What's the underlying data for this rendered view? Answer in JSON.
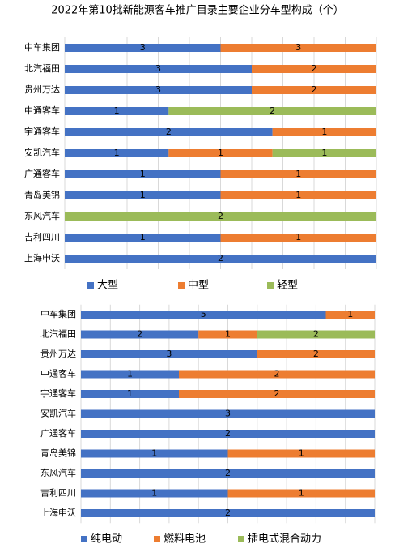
{
  "chart_data": [
    {
      "type": "bar",
      "title": "2022年第10批新能源客车推广目录主要企业分车型构成（个）",
      "stacking": "percent",
      "grid": true,
      "categories": [
        "中车集团",
        "北汽福田",
        "贵州万达",
        "中通客车",
        "宇通客车",
        "安凯汽车",
        "广通客车",
        "青岛美锦",
        "东风汽车",
        "吉利四川",
        "上海申沃"
      ],
      "series": [
        {
          "name": "大型",
          "color": "#4472c4",
          "values": [
            3,
            3,
            3,
            1,
            2,
            1,
            1,
            1,
            null,
            1,
            2
          ]
        },
        {
          "name": "中型",
          "color": "#ed7d31",
          "values": [
            3,
            2,
            2,
            null,
            1,
            1,
            1,
            1,
            null,
            1,
            null
          ]
        },
        {
          "name": "轻型",
          "color": "#9bbb59",
          "values": [
            null,
            null,
            null,
            2,
            null,
            1,
            null,
            null,
            2,
            null,
            null
          ]
        }
      ]
    },
    {
      "type": "bar",
      "stacking": "percent",
      "grid": true,
      "categories": [
        "中车集团",
        "北汽福田",
        "贵州万达",
        "中通客车",
        "宇通客车",
        "安凯汽车",
        "广通客车",
        "青岛美锦",
        "东风汽车",
        "吉利四川",
        "上海申沃"
      ],
      "series": [
        {
          "name": "纯电动",
          "color": "#4472c4",
          "values": [
            5,
            2,
            3,
            1,
            1,
            3,
            2,
            1,
            2,
            1,
            2
          ]
        },
        {
          "name": "燃料电池",
          "color": "#ed7d31",
          "values": [
            1,
            1,
            2,
            2,
            2,
            null,
            null,
            1,
            null,
            1,
            null
          ]
        },
        {
          "name": "插电式混合动力",
          "color": "#9bbb59",
          "values": [
            null,
            2,
            null,
            null,
            null,
            null,
            null,
            null,
            null,
            null,
            null
          ]
        }
      ]
    }
  ]
}
